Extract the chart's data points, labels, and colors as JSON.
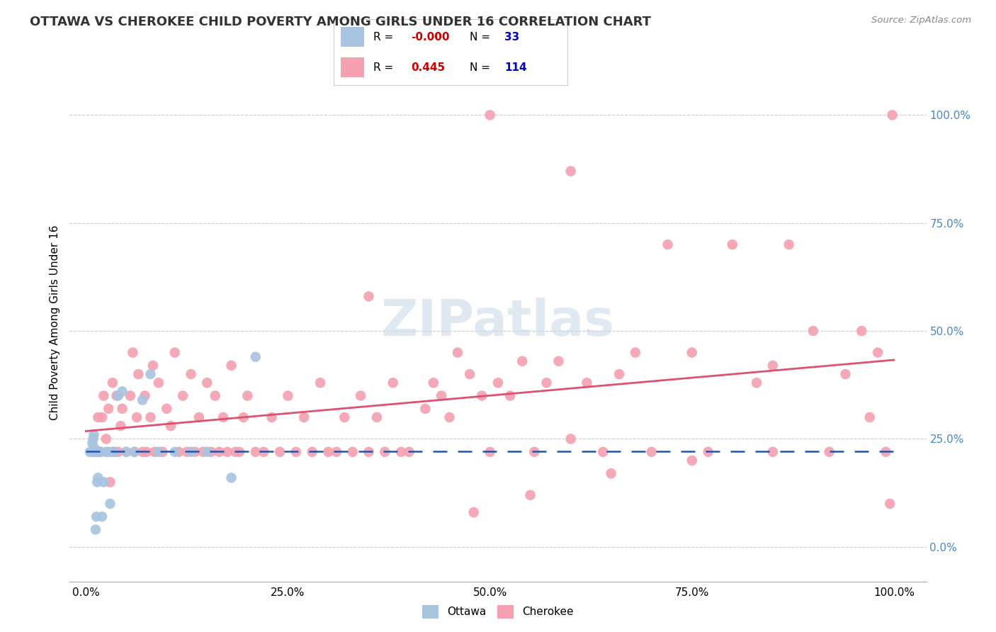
{
  "title": "OTTAWA VS CHEROKEE CHILD POVERTY AMONG GIRLS UNDER 16 CORRELATION CHART",
  "source": "Source: ZipAtlas.com",
  "ylabel": "Child Poverty Among Girls Under 16",
  "xlim": [
    0.0,
    1.0
  ],
  "ylim": [
    -0.08,
    1.12
  ],
  "ottawa_R": "-0.000",
  "ottawa_N": 33,
  "cherokee_R": "0.445",
  "cherokee_N": 114,
  "ottawa_color": "#a8c4e0",
  "cherokee_color": "#f4a0b0",
  "ottawa_line_color": "#2255aa",
  "cherokee_line_color": "#e05070",
  "legend_R_color": "#cc0000",
  "legend_N_color": "#0000cc",
  "watermark": "ZIPatlas",
  "ytick_labels": [
    "0.0%",
    "25.0%",
    "50.0%",
    "75.0%",
    "100.0%"
  ],
  "ytick_values": [
    0.0,
    0.25,
    0.5,
    0.75,
    1.0
  ],
  "xtick_labels": [
    "0.0%",
    "25.0%",
    "50.0%",
    "75.0%",
    "100.0%"
  ],
  "xtick_values": [
    0.0,
    0.25,
    0.5,
    0.75,
    1.0
  ],
  "ottawa_x": [
    0.005,
    0.007,
    0.008,
    0.009,
    0.01,
    0.01,
    0.011,
    0.012,
    0.013,
    0.014,
    0.015,
    0.016,
    0.017,
    0.018,
    0.02,
    0.022,
    0.025,
    0.028,
    0.03,
    0.032,
    0.035,
    0.04,
    0.045,
    0.05,
    0.06,
    0.07,
    0.08,
    0.09,
    0.11,
    0.13,
    0.15,
    0.18,
    0.21
  ],
  "ottawa_y": [
    0.22,
    0.22,
    0.24,
    0.25,
    0.23,
    0.26,
    0.22,
    0.04,
    0.07,
    0.15,
    0.16,
    0.22,
    0.22,
    0.22,
    0.07,
    0.15,
    0.22,
    0.22,
    0.1,
    0.22,
    0.22,
    0.35,
    0.36,
    0.22,
    0.22,
    0.34,
    0.4,
    0.22,
    0.22,
    0.22,
    0.22,
    0.16,
    0.44
  ],
  "cherokee_x": [
    0.01,
    0.012,
    0.015,
    0.018,
    0.02,
    0.022,
    0.025,
    0.028,
    0.03,
    0.033,
    0.035,
    0.038,
    0.04,
    0.043,
    0.045,
    0.05,
    0.055,
    0.058,
    0.06,
    0.063,
    0.065,
    0.07,
    0.073,
    0.075,
    0.08,
    0.083,
    0.085,
    0.09,
    0.095,
    0.1,
    0.105,
    0.11,
    0.115,
    0.12,
    0.125,
    0.13,
    0.135,
    0.14,
    0.145,
    0.15,
    0.155,
    0.16,
    0.165,
    0.17,
    0.175,
    0.18,
    0.185,
    0.19,
    0.195,
    0.2,
    0.21,
    0.22,
    0.23,
    0.24,
    0.25,
    0.26,
    0.27,
    0.28,
    0.29,
    0.3,
    0.31,
    0.32,
    0.33,
    0.34,
    0.35,
    0.36,
    0.37,
    0.38,
    0.39,
    0.4,
    0.42,
    0.43,
    0.44,
    0.45,
    0.46,
    0.475,
    0.49,
    0.5,
    0.51,
    0.525,
    0.54,
    0.555,
    0.57,
    0.585,
    0.6,
    0.62,
    0.64,
    0.66,
    0.68,
    0.7,
    0.72,
    0.75,
    0.77,
    0.8,
    0.83,
    0.85,
    0.87,
    0.9,
    0.92,
    0.94,
    0.96,
    0.97,
    0.98,
    0.99,
    0.995,
    0.998,
    0.5,
    0.6,
    0.35,
    0.48,
    0.55,
    0.65,
    0.75,
    0.85
  ],
  "cherokee_y": [
    0.22,
    0.22,
    0.3,
    0.22,
    0.3,
    0.35,
    0.25,
    0.32,
    0.15,
    0.38,
    0.22,
    0.35,
    0.22,
    0.28,
    0.32,
    0.22,
    0.35,
    0.45,
    0.22,
    0.3,
    0.4,
    0.22,
    0.35,
    0.22,
    0.3,
    0.42,
    0.22,
    0.38,
    0.22,
    0.32,
    0.28,
    0.45,
    0.22,
    0.35,
    0.22,
    0.4,
    0.22,
    0.3,
    0.22,
    0.38,
    0.22,
    0.35,
    0.22,
    0.3,
    0.22,
    0.42,
    0.22,
    0.22,
    0.3,
    0.35,
    0.22,
    0.22,
    0.3,
    0.22,
    0.35,
    0.22,
    0.3,
    0.22,
    0.38,
    0.22,
    0.22,
    0.3,
    0.22,
    0.35,
    0.22,
    0.3,
    0.22,
    0.38,
    0.22,
    0.22,
    0.32,
    0.38,
    0.35,
    0.3,
    0.45,
    0.4,
    0.35,
    0.22,
    0.38,
    0.35,
    0.43,
    0.22,
    0.38,
    0.43,
    0.25,
    0.38,
    0.22,
    0.4,
    0.45,
    0.22,
    0.7,
    0.45,
    0.22,
    0.7,
    0.38,
    0.22,
    0.7,
    0.5,
    0.22,
    0.4,
    0.5,
    0.3,
    0.45,
    0.22,
    0.1,
    1.0,
    1.0,
    0.87,
    0.58,
    0.08,
    0.12,
    0.17,
    0.2,
    0.42
  ]
}
